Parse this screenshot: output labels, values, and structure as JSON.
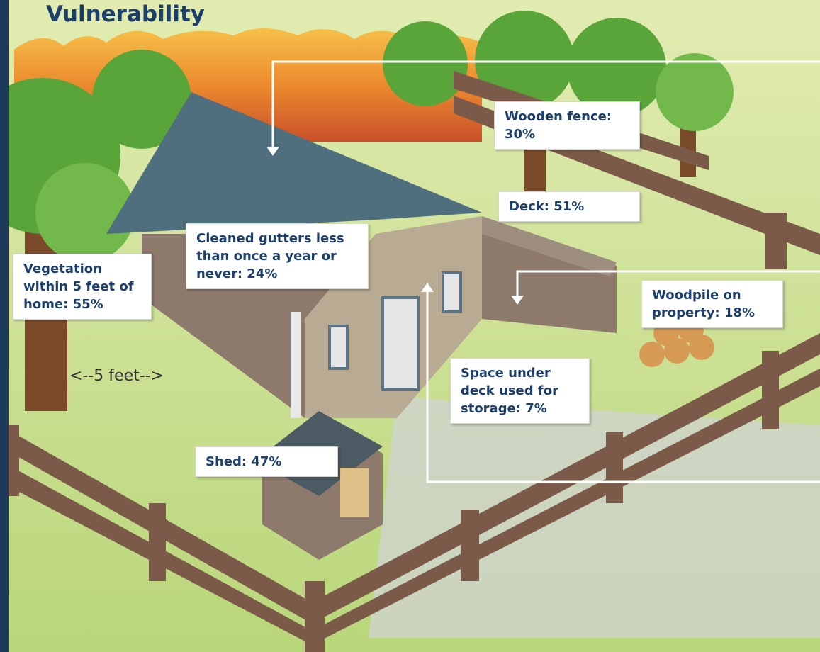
{
  "header": {
    "title": "Vulnerability"
  },
  "callouts": [
    {
      "label": "Wooden fence: 30%"
    },
    {
      "label": "Deck: 51%"
    },
    {
      "label": "Cleaned gutters less than once a year or never: 24%"
    },
    {
      "label": "Vegetation within 5 feet of home: 55%"
    },
    {
      "label": "Woodpile on property: 18%"
    },
    {
      "label": "Space under deck used for storage: 7%"
    },
    {
      "label": "Shed: 47%"
    }
  ],
  "distance_note": "<--5 feet-->"
}
